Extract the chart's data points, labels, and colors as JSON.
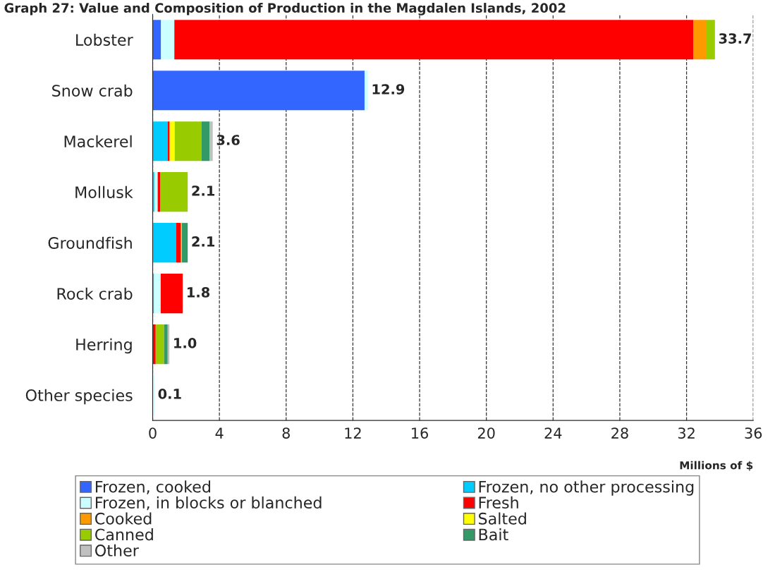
{
  "chart_data": {
    "type": "bar",
    "orientation": "horizontal",
    "stacked": true,
    "title": "Graph 27: Value and Composition of Production in the Magdalen Islands, 2002",
    "xlabel": "Millions of $",
    "categories": [
      "Lobster",
      "Snow crab",
      "Mackerel",
      "Mollusk",
      "Groundfish",
      "Rock crab",
      "Herring",
      "Other species"
    ],
    "series": [
      {
        "name": "Frozen, cooked",
        "color": "#3366ff",
        "values": [
          0.5,
          12.7,
          null,
          null,
          null,
          null,
          null,
          null
        ]
      },
      {
        "name": "Frozen, no other processing",
        "color": "#00ccff",
        "values": [
          null,
          null,
          0.9,
          0.1,
          1.4,
          0.08,
          null,
          null
        ]
      },
      {
        "name": "Frozen, in blocks or blanched",
        "color": "#ccffff",
        "values": [
          0.8,
          0.2,
          null,
          0.2,
          null,
          0.4,
          null,
          0.1
        ]
      },
      {
        "name": "Fresh",
        "color": "#ff0000",
        "values": [
          31.1,
          null,
          0.12,
          0.15,
          0.3,
          1.32,
          0.18,
          null
        ]
      },
      {
        "name": "Cooked",
        "color": "#ff9900",
        "values": [
          0.8,
          null,
          null,
          null,
          null,
          null,
          null,
          null
        ]
      },
      {
        "name": "Salted",
        "color": "#ffff00",
        "values": [
          null,
          null,
          0.3,
          null,
          0.04,
          null,
          null,
          null
        ]
      },
      {
        "name": "Canned",
        "color": "#99cc00",
        "values": [
          0.5,
          null,
          1.6,
          1.65,
          null,
          null,
          0.5,
          null
        ]
      },
      {
        "name": "Bait",
        "color": "#339966",
        "values": [
          null,
          null,
          0.5,
          null,
          0.36,
          null,
          0.22,
          null
        ]
      },
      {
        "name": "Other",
        "color": "#c0c0c0",
        "values": [
          null,
          null,
          0.18,
          null,
          null,
          null,
          0.1,
          null
        ]
      }
    ],
    "totals": [
      "33.7",
      "12.9",
      "3.6",
      "2.1",
      "2.1",
      "1.8",
      "1.0",
      "0.1"
    ],
    "xlim": [
      0,
      36
    ],
    "xticks": [
      0,
      4,
      8,
      12,
      16,
      20,
      24,
      28,
      32,
      36
    ],
    "grid": "x",
    "line_style": "dashed",
    "legend": "bottom"
  }
}
